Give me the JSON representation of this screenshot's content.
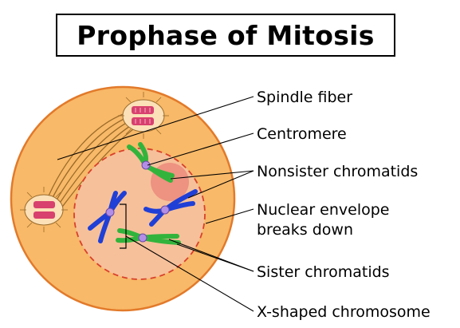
{
  "title": "Prophase of Mitosis",
  "labels": {
    "spindle_fiber": "Spindle fiber",
    "centromere": "Centromere",
    "nonsister": "Nonsister chromatids",
    "nuclear_line1": "Nuclear envelope",
    "nuclear_line2": "breaks down",
    "sister": "Sister chromatids",
    "xshaped": "X-shaped chromosome"
  },
  "colors": {
    "cell_fill": "#f8b968",
    "cell_outline": "#e27a2a",
    "nucleus_fill": "#f6c09a",
    "nucleus_outline": "#d9402a",
    "chromatid_blue": "#1f3fd6",
    "chromatid_green": "#32b43c",
    "centromere": "#b38ee6",
    "centriole": "#d8406e"
  }
}
